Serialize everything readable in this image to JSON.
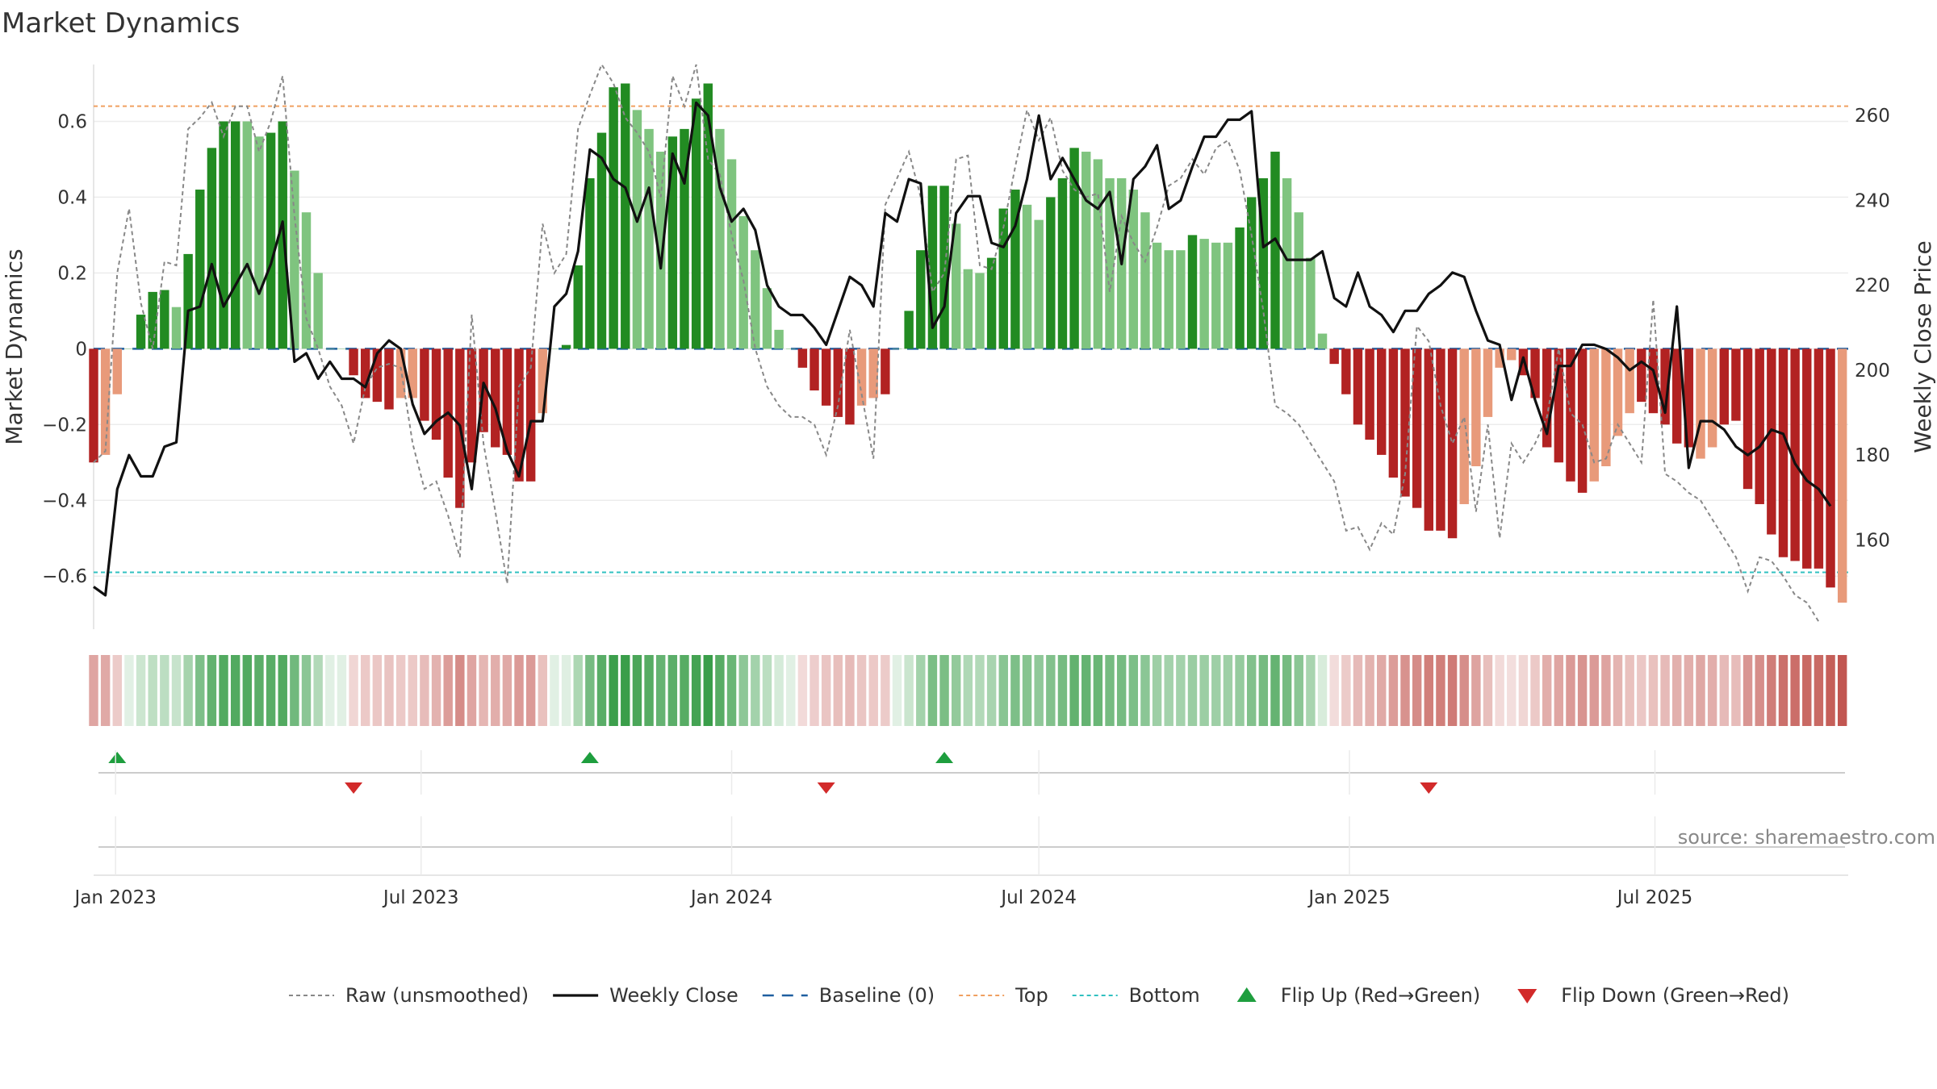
{
  "chart_data": {
    "type": "bar",
    "title": "Market Dynamics",
    "ylabel": "Market Dynamics",
    "ylabel_right": "Weekly Close Price",
    "ylim": [
      -0.74,
      0.75
    ],
    "ylim_right": [
      139,
      272
    ],
    "yticks": [
      "0.6",
      "0.4",
      "0.2",
      "0",
      "−0.2",
      "−0.4",
      "−0.6"
    ],
    "yticks_right": [
      "260",
      "240",
      "220",
      "200",
      "180",
      "160"
    ],
    "xticks": [
      "Jan 2023",
      "Jul 2023",
      "Jan 2024",
      "Jul 2024",
      "Jan 2025",
      "Jul 2025"
    ],
    "xtick_dates": [
      "2023-01-01",
      "2023-07-01",
      "2024-01-01",
      "2024-07-01",
      "2025-01-01",
      "2025-07-01"
    ],
    "week_start": "2022-12-19",
    "lines": {
      "top": 0.64,
      "bottom": -0.59,
      "baseline": 0
    },
    "colors": {
      "green_strong": "#228B22",
      "green_light": "#7FC47F",
      "red_strong": "#B22222",
      "red_light": "#E89A7A",
      "close": "#111111",
      "raw": "#888888",
      "baseline": "#1F5FA0",
      "top": "#F0A060",
      "bottom": "#30C0C0",
      "flip_up": "#1E9E3E",
      "flip_down": "#D22A2A"
    },
    "values": [
      -0.3,
      -0.28,
      -0.12,
      0.0,
      0.09,
      0.15,
      0.155,
      0.11,
      0.25,
      0.42,
      0.53,
      0.6,
      0.6,
      0.6,
      0.56,
      0.57,
      0.6,
      0.47,
      0.36,
      0.2,
      0.0,
      0.0,
      -0.07,
      -0.13,
      -0.14,
      -0.16,
      -0.13,
      -0.13,
      -0.19,
      -0.24,
      -0.34,
      -0.42,
      -0.3,
      -0.22,
      -0.26,
      -0.28,
      -0.35,
      -0.35,
      -0.17,
      0.0,
      0.01,
      0.22,
      0.45,
      0.57,
      0.69,
      0.7,
      0.63,
      0.58,
      0.52,
      0.56,
      0.58,
      0.66,
      0.7,
      0.58,
      0.5,
      0.35,
      0.26,
      0.16,
      0.05,
      0.0,
      -0.05,
      -0.11,
      -0.15,
      -0.18,
      -0.2,
      -0.15,
      -0.13,
      -0.12,
      0.0,
      0.1,
      0.26,
      0.43,
      0.43,
      0.33,
      0.21,
      0.2,
      0.24,
      0.37,
      0.42,
      0.38,
      0.34,
      0.4,
      0.45,
      0.53,
      0.52,
      0.5,
      0.45,
      0.45,
      0.42,
      0.36,
      0.28,
      0.26,
      0.26,
      0.3,
      0.29,
      0.28,
      0.28,
      0.32,
      0.4,
      0.45,
      0.52,
      0.45,
      0.36,
      0.24,
      0.04,
      -0.04,
      -0.12,
      -0.2,
      -0.24,
      -0.28,
      -0.34,
      -0.39,
      -0.42,
      -0.48,
      -0.48,
      -0.5,
      -0.41,
      -0.31,
      -0.18,
      -0.05,
      -0.03,
      -0.07,
      -0.13,
      -0.26,
      -0.3,
      -0.35,
      -0.38,
      -0.35,
      -0.31,
      -0.23,
      -0.17,
      -0.14,
      -0.17,
      -0.2,
      -0.25,
      -0.26,
      -0.29,
      -0.26,
      -0.2,
      -0.19,
      -0.37,
      -0.41,
      -0.49,
      -0.55,
      -0.56,
      -0.58,
      -0.58,
      -0.63,
      -0.67
    ],
    "strong": [
      1,
      0,
      0,
      0,
      1,
      1,
      1,
      0,
      1,
      1,
      1,
      1,
      1,
      0,
      0,
      1,
      1,
      0,
      0,
      0,
      0,
      0,
      1,
      1,
      1,
      1,
      0,
      0,
      1,
      1,
      1,
      1,
      1,
      1,
      1,
      1,
      1,
      1,
      0,
      0,
      1,
      1,
      1,
      1,
      1,
      1,
      0,
      0,
      0,
      1,
      1,
      1,
      1,
      0,
      0,
      0,
      0,
      0,
      0,
      0,
      1,
      1,
      1,
      1,
      1,
      0,
      0,
      1,
      0,
      1,
      1,
      1,
      1,
      0,
      0,
      0,
      1,
      1,
      1,
      0,
      0,
      1,
      1,
      1,
      0,
      0,
      0,
      0,
      0,
      0,
      0,
      0,
      0,
      1,
      0,
      0,
      0,
      1,
      1,
      1,
      1,
      0,
      0,
      0,
      0,
      1,
      1,
      1,
      1,
      1,
      1,
      1,
      1,
      1,
      1,
      1,
      0,
      0,
      0,
      0,
      0,
      1,
      1,
      1,
      1,
      1,
      1,
      0,
      0,
      0,
      0,
      1,
      1,
      1,
      1,
      1,
      0,
      0,
      1,
      1,
      1,
      1,
      1,
      1,
      1,
      1,
      1,
      1
    ],
    "weekly_close": [
      149,
      147,
      172,
      180,
      175,
      175,
      182,
      183,
      214,
      215,
      225,
      215,
      220,
      225,
      218,
      225,
      235,
      202,
      204,
      198,
      202,
      198,
      198,
      196,
      204,
      207,
      205,
      192,
      185,
      188,
      190,
      187,
      172,
      197,
      191,
      181,
      175,
      188,
      188,
      215,
      218,
      228,
      252,
      250,
      245,
      243,
      235,
      243,
      224,
      251,
      244,
      263,
      260,
      243,
      235,
      238,
      233,
      220,
      215,
      213,
      213,
      210,
      206,
      214,
      222,
      220,
      215,
      237,
      235,
      245,
      244,
      210,
      215,
      237,
      241,
      241,
      230,
      229,
      234,
      245,
      260,
      245,
      250,
      245,
      240,
      238,
      242,
      225,
      245,
      248,
      253,
      238,
      240,
      248,
      255,
      255,
      259,
      259,
      261,
      229,
      231,
      226,
      226,
      226,
      228,
      217,
      215,
      223,
      215,
      213,
      209,
      214,
      214,
      218,
      220,
      223,
      222,
      214,
      207,
      206,
      193,
      203,
      193,
      185,
      201,
      201,
      206,
      206,
      205,
      203,
      200,
      202,
      200,
      190,
      215,
      177,
      188,
      188,
      186,
      182,
      180,
      182,
      186,
      185,
      178,
      174,
      172,
      168
    ],
    "raw": [
      -0.3,
      -0.27,
      0.2,
      0.37,
      0.12,
      0.0,
      0.23,
      0.22,
      0.58,
      0.61,
      0.65,
      0.56,
      0.64,
      0.64,
      0.52,
      0.6,
      0.72,
      0.35,
      0.08,
      0.0,
      -0.1,
      -0.15,
      -0.25,
      -0.1,
      -0.05,
      -0.04,
      -0.05,
      -0.25,
      -0.37,
      -0.35,
      -0.44,
      -0.55,
      0.09,
      -0.25,
      -0.43,
      -0.62,
      -0.1,
      -0.05,
      0.33,
      0.2,
      0.25,
      0.58,
      0.67,
      0.75,
      0.7,
      0.61,
      0.57,
      0.52,
      0.4,
      0.72,
      0.64,
      0.75,
      0.5,
      0.46,
      0.3,
      0.18,
      0.0,
      -0.1,
      -0.15,
      -0.18,
      -0.18,
      -0.2,
      -0.28,
      -0.15,
      0.05,
      -0.12,
      -0.29,
      0.38,
      0.45,
      0.52,
      0.4,
      0.15,
      0.2,
      0.5,
      0.51,
      0.22,
      0.21,
      0.32,
      0.48,
      0.63,
      0.55,
      0.61,
      0.47,
      0.42,
      0.4,
      0.41,
      0.15,
      0.35,
      0.28,
      0.23,
      0.32,
      0.43,
      0.45,
      0.5,
      0.46,
      0.53,
      0.55,
      0.47,
      0.3,
      0.1,
      -0.15,
      -0.17,
      -0.2,
      -0.25,
      -0.3,
      -0.35,
      -0.48,
      -0.47,
      -0.53,
      -0.46,
      -0.49,
      -0.33,
      0.06,
      0.02,
      -0.15,
      -0.25,
      -0.18,
      -0.43,
      -0.2,
      -0.5,
      -0.25,
      -0.3,
      -0.25,
      -0.18,
      0.0,
      -0.17,
      -0.2,
      -0.3,
      -0.29,
      -0.2,
      -0.25,
      -0.3,
      0.13,
      -0.33,
      -0.35,
      -0.38,
      -0.4,
      -0.45,
      -0.5,
      -0.55,
      -0.64,
      -0.55,
      -0.56,
      -0.6,
      -0.65,
      -0.67,
      -0.72
    ],
    "flips": [
      {
        "type": "up",
        "week": 2
      },
      {
        "type": "down",
        "week": 22
      },
      {
        "type": "up",
        "week": 42
      },
      {
        "type": "down",
        "week": 62
      },
      {
        "type": "up",
        "week": 72
      },
      {
        "type": "down",
        "week": 113
      }
    ],
    "legend": [
      {
        "label": "Raw (unsmoothed)",
        "marker": "dashed-gray"
      },
      {
        "label": "Weekly Close",
        "marker": "solid-black"
      },
      {
        "label": "Baseline (0)",
        "marker": "dashed-blue"
      },
      {
        "label": "Top",
        "marker": "dotted-orange"
      },
      {
        "label": "Bottom",
        "marker": "dotted-cyan"
      },
      {
        "label": "Flip Up (Red→Green)",
        "marker": "triangle-up"
      },
      {
        "label": "Flip Down (Green→Red)",
        "marker": "triangle-down"
      }
    ],
    "legend_placement": "bottom-center",
    "grid": true
  },
  "source_text": "source: sharemaestro.com"
}
